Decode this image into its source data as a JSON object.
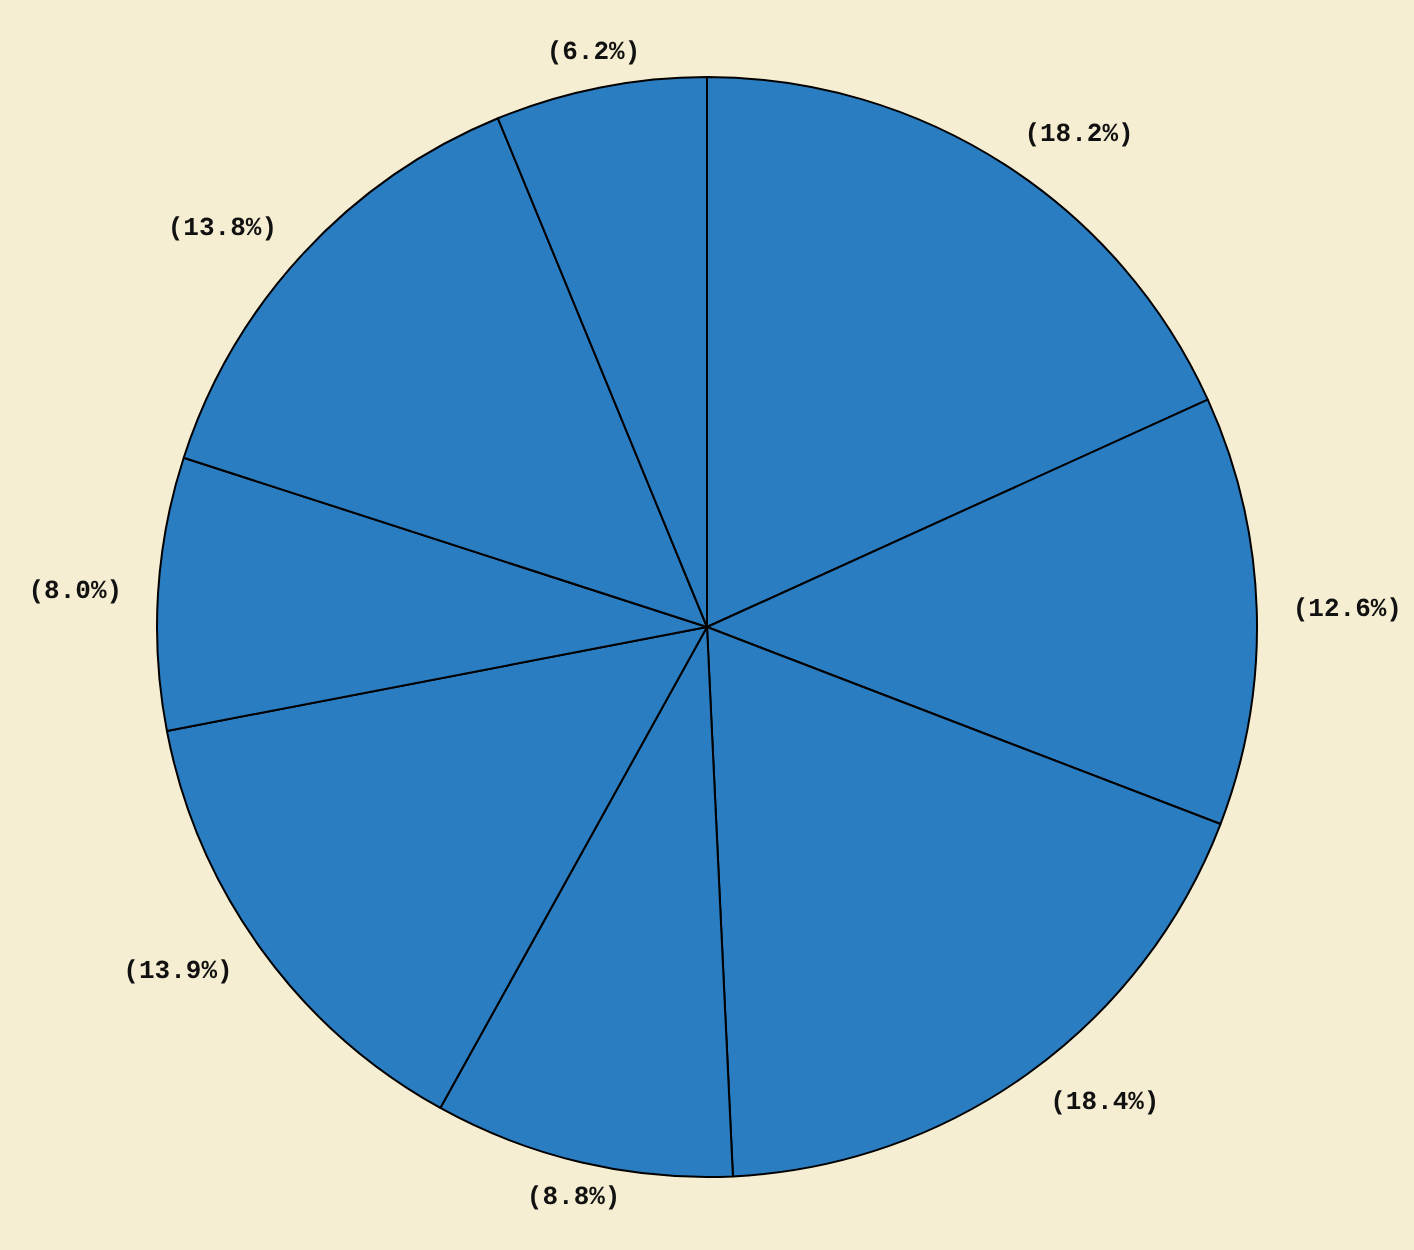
{
  "chart_data": {
    "type": "pie",
    "categories": [
      null,
      null,
      null,
      null,
      null,
      null,
      null,
      null
    ],
    "values": [
      18.2,
      12.6,
      18.4,
      8.8,
      13.9,
      8.0,
      13.8,
      6.2
    ],
    "value_labels": [
      "(18.2%)",
      "(12.6%)",
      "(18.4%)",
      "(8.8%)",
      "(13.9%)",
      "(8.0%)",
      "(13.8%)",
      "(6.2%)"
    ],
    "colors": [
      "#2b7dc2",
      "#2b7dc2",
      "#2b7dc2",
      "#2b7dc2",
      "#2b7dc2",
      "#2b7dc2",
      "#2b7dc2",
      "#2b7dc2"
    ],
    "legend": false
  }
}
